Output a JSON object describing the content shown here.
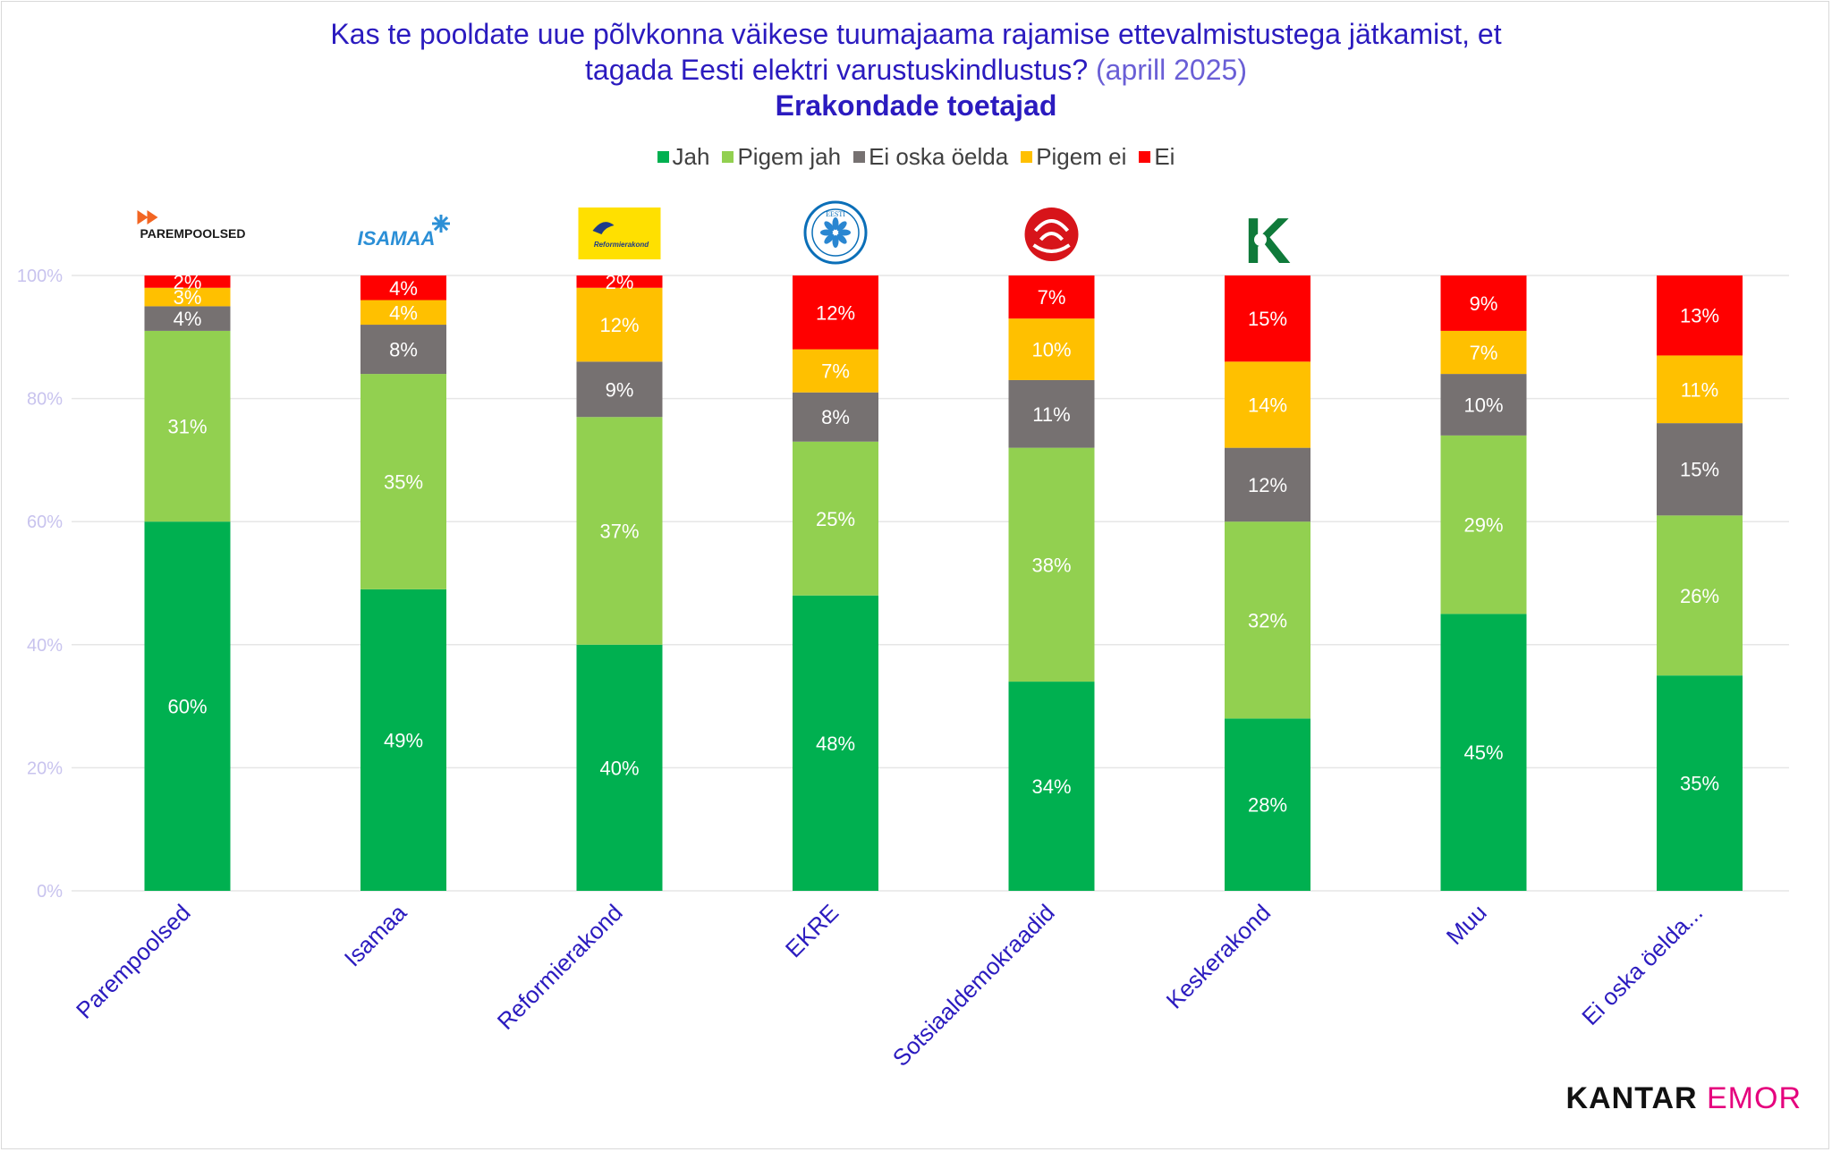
{
  "title": {
    "line1": "Kas te pooldate uue põlvkonna väikese tuumajaama rajamise ettevalmistustega jätkamist, et",
    "line2": "tagada Eesti elektri varustuskindlustus?",
    "date": "(aprill 2025)",
    "subtitle": "Erakondade toetajad"
  },
  "brand": {
    "part1": "KANTAR",
    "part2": "EMOR"
  },
  "colors": {
    "Jah": "#00b050",
    "Pigem jah": "#92d050",
    "Ei oska öelda": "#767171",
    "Pigem ei": "#ffc000",
    "Ei": "#ff0000"
  },
  "logos": [
    {
      "name": "parempoolsed-logo",
      "text": "PAREMPOOLSED"
    },
    {
      "name": "isamaa-logo",
      "text": "ISAMAA"
    },
    {
      "name": "reformierakond-logo",
      "text": "Reformierakond"
    },
    {
      "name": "ekre-logo",
      "text": "EESTI"
    },
    {
      "name": "sotsiaaldemokraadid-logo",
      "text": ""
    },
    {
      "name": "keskerakond-logo",
      "text": "K"
    },
    {
      "name": "muu-logo",
      "text": ""
    },
    {
      "name": "ei-oska-logo",
      "text": ""
    }
  ],
  "chart_data": {
    "type": "bar",
    "stacked": true,
    "categories": [
      "Parempoolsed",
      "Isamaa",
      "Reformierakond",
      "EKRE",
      "Sotsiaaldemokraadid",
      "Keskerakond",
      "Muu",
      "Ei oska öelda..."
    ],
    "series": [
      {
        "name": "Jah",
        "values": [
          60,
          49,
          40,
          48,
          34,
          28,
          45,
          35
        ]
      },
      {
        "name": "Pigem jah",
        "values": [
          31,
          35,
          37,
          25,
          38,
          32,
          29,
          26
        ]
      },
      {
        "name": "Ei oska öelda",
        "values": [
          4,
          8,
          9,
          8,
          11,
          12,
          10,
          15
        ]
      },
      {
        "name": "Pigem ei",
        "values": [
          3,
          4,
          12,
          7,
          10,
          14,
          7,
          11
        ]
      },
      {
        "name": "Ei",
        "values": [
          2,
          4,
          2,
          12,
          7,
          15,
          9,
          13
        ]
      }
    ],
    "yticks": [
      "0%",
      "20%",
      "40%",
      "60%",
      "80%",
      "100%"
    ],
    "ylim": [
      0,
      100
    ],
    "legend_position": "top",
    "grid": true
  }
}
